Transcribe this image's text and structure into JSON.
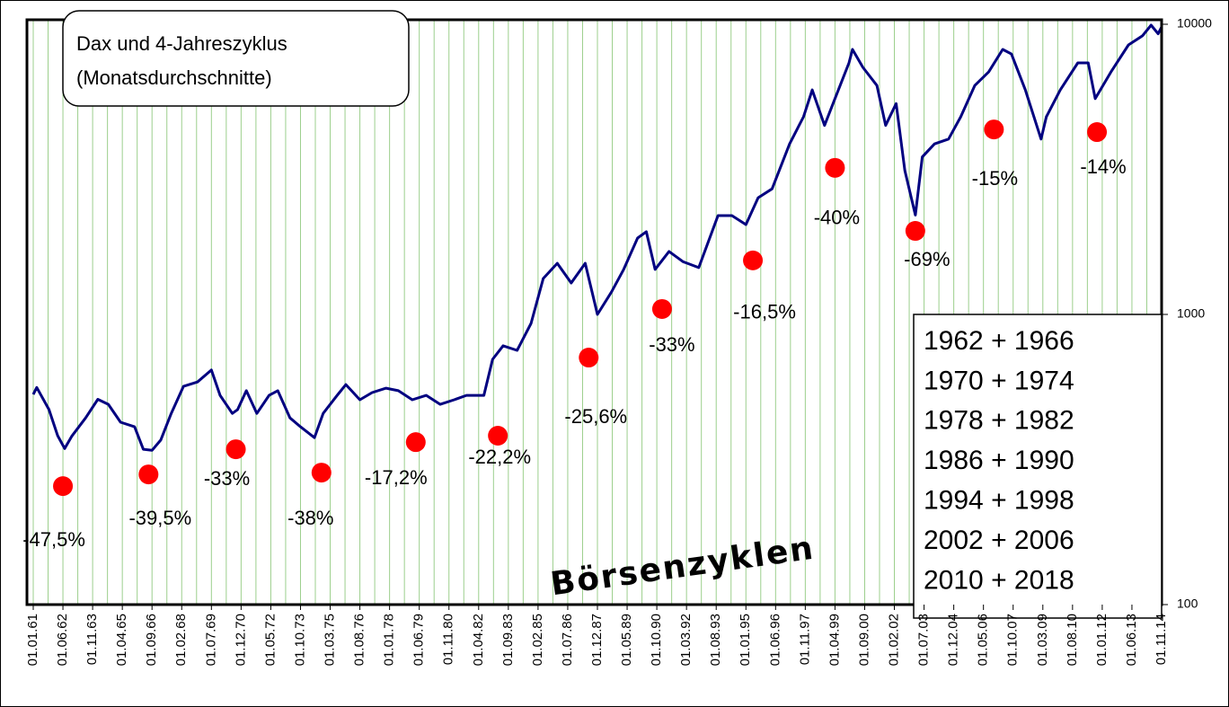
{
  "chart_data": {
    "type": "line",
    "title": "Dax und 4-Jahreszyklus",
    "subtitle": "(Monatsdurchschnitte)",
    "annotation": "Börsenzyklen",
    "legend_lines": [
      "1962 + 1966",
      "1970 + 1974",
      "1978 + 1982",
      "1986 + 1990",
      "1994 + 1998",
      "2002 + 2006",
      "2010 + 2018"
    ],
    "xlim": [
      "01.01.61",
      "01.11.14"
    ],
    "xticks": [
      "01.01.61",
      "01.06.62",
      "01.11.63",
      "01.04.65",
      "01.09.66",
      "01.02.68",
      "01.07.69",
      "01.12.70",
      "01.05.72",
      "01.10.73",
      "01.03.75",
      "01.08.76",
      "01.01.78",
      "01.06.79",
      "01.11.80",
      "01.04.82",
      "01.09.83",
      "01.02.85",
      "01.07.86",
      "01.12.87",
      "01.05.89",
      "01.10.90",
      "01.03.92",
      "01.08.93",
      "01.01.95",
      "01.06.96",
      "01.11.97",
      "01.04.99",
      "01.09.00",
      "01.02.02",
      "01.07.03",
      "01.12.04",
      "01.05.06",
      "01.10.07",
      "01.03.09",
      "01.08.10",
      "01.01.12",
      "01.06.13",
      "01.11.14"
    ],
    "ylim": [
      100,
      10000
    ],
    "yticks": [
      100,
      1000,
      10000
    ],
    "log_scale": true,
    "grid": "x",
    "series": [
      {
        "color": "#000080",
        "x": [
          "01.01.61",
          "01.03.61",
          "01.10.61",
          "01.03.62",
          "01.07.62",
          "01.11.62",
          "01.07.63",
          "01.02.64",
          "01.08.64",
          "01.03.65",
          "01.11.65",
          "01.04.66",
          "01.09.66",
          "01.02.67",
          "01.08.67",
          "01.03.68",
          "01.11.68",
          "01.07.69",
          "01.12.69",
          "01.07.70",
          "01.10.70",
          "01.03.71",
          "01.09.71",
          "01.04.72",
          "01.09.72",
          "01.04.73",
          "01.10.73",
          "01.06.74",
          "01.11.74",
          "01.07.75",
          "01.12.75",
          "01.08.76",
          "01.03.77",
          "01.11.77",
          "01.06.78",
          "01.02.79",
          "01.10.79",
          "01.06.80",
          "01.02.81",
          "01.09.81",
          "01.07.82",
          "01.12.82",
          "01.06.83",
          "01.02.84",
          "01.10.84",
          "01.05.85",
          "01.01.86",
          "01.09.86",
          "01.05.87",
          "01.12.87",
          "01.08.88",
          "01.03.89",
          "01.11.89",
          "01.04.90",
          "01.09.90",
          "01.05.91",
          "01.01.92",
          "01.10.92",
          "01.09.93",
          "01.05.94",
          "01.01.95",
          "01.08.95",
          "01.04.96",
          "01.02.97",
          "01.10.97",
          "01.03.98",
          "01.10.98",
          "01.04.99",
          "01.12.99",
          "01.02.00",
          "01.08.00",
          "01.04.01",
          "01.09.01",
          "01.03.02",
          "01.08.02",
          "01.02.03",
          "01.06.03",
          "01.01.04",
          "01.09.04",
          "01.04.05",
          "01.12.05",
          "01.08.06",
          "01.04.07",
          "01.09.07",
          "01.05.08",
          "01.02.09",
          "01.05.09",
          "01.01.10",
          "01.11.10",
          "01.05.11",
          "01.09.11",
          "01.06.12",
          "01.04.13",
          "01.12.13",
          "01.05.14",
          "01.09.14",
          "01.11.14"
        ],
        "values": [
          530,
          560,
          470,
          382,
          345,
          380,
          440,
          510,
          490,
          425,
          410,
          343,
          340,
          369,
          456,
          565,
          585,
          643,
          526,
          456,
          470,
          546,
          456,
          526,
          546,
          440,
          410,
          376,
          456,
          526,
          573,
          508,
          538,
          557,
          546,
          508,
          526,
          490,
          508,
          526,
          526,
          700,
          780,
          752,
          931,
          1330,
          1500,
          1283,
          1500,
          1000,
          1194,
          1429,
          1833,
          1928,
          1429,
          1648,
          1520,
          1450,
          2190,
          2190,
          2040,
          2525,
          2710,
          3870,
          4800,
          5940,
          4480,
          5540,
          7360,
          8190,
          7100,
          6150,
          4480,
          5330,
          3130,
          2200,
          3490,
          3870,
          4020,
          4800,
          6150,
          6850,
          8190,
          7900,
          5940,
          4020,
          4800,
          5940,
          7360,
          7360,
          5540,
          6850,
          8490,
          9120,
          9930,
          9270,
          9790
        ]
      }
    ],
    "cycle_lows": {
      "color": "#ff0000",
      "x": [
        "01.06.62",
        "01.07.66",
        "01.09.70",
        "01.10.74",
        "01.04.79",
        "01.03.83",
        "01.07.87",
        "01.01.91",
        "01.05.95",
        "01.04.99",
        "01.02.03",
        "01.11.06",
        "01.10.11"
      ],
      "values": [
        256,
        281,
        343,
        285,
        363,
        382,
        710,
        1044,
        1535,
        3200,
        1940,
        4340,
        4250
      ],
      "labels": [
        "-47,5%",
        "-39,5%",
        "-33%",
        "-38%",
        "-17,2%",
        "-22,2%",
        "-25,6%",
        "-33%",
        "-16,5%",
        "-40%",
        "-69%",
        "-15%",
        "-14%"
      ]
    }
  }
}
